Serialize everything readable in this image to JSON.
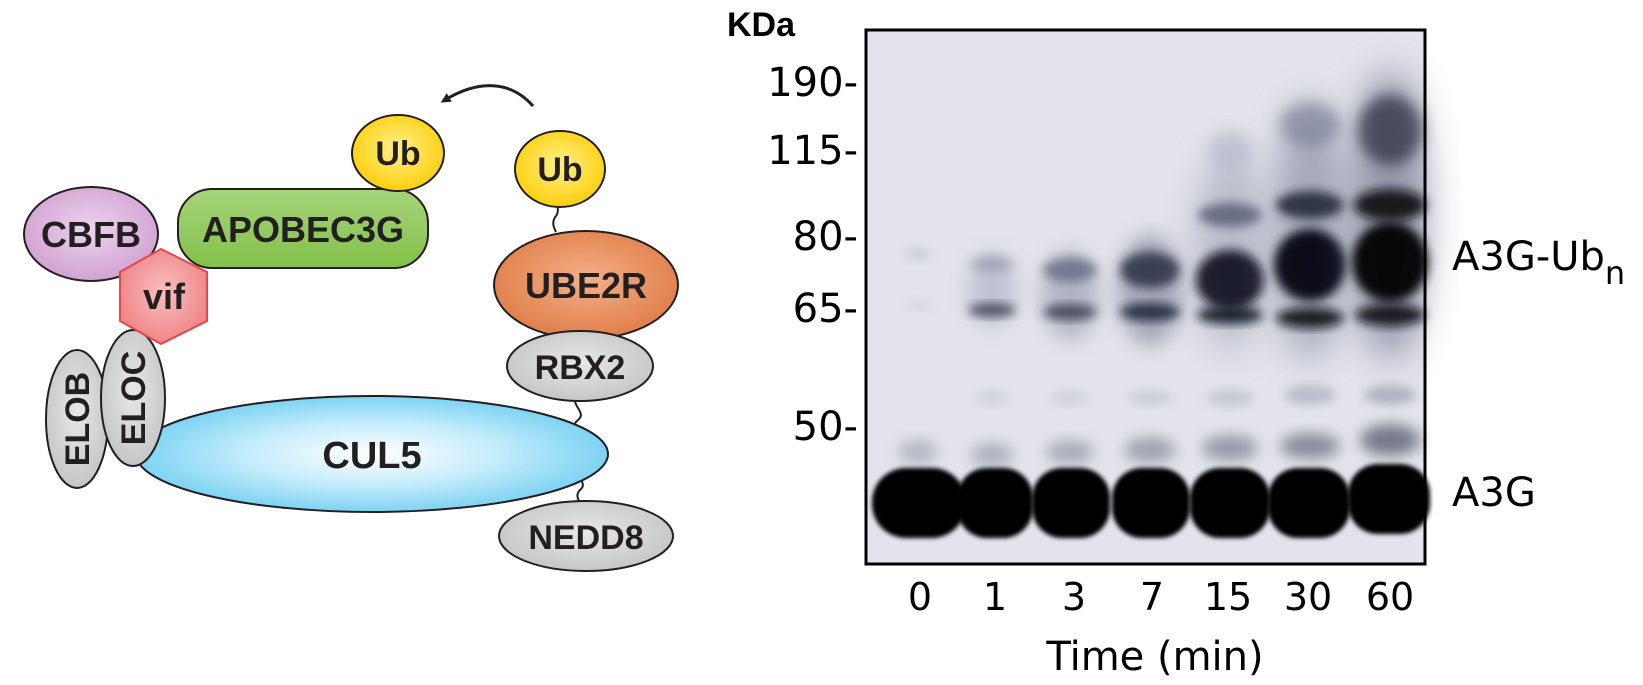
{
  "diagram": {
    "proteins": {
      "cbfb": "CBFB",
      "apobec3g": "APOBEC3G",
      "ub_left": "Ub",
      "ub_right": "Ub",
      "vif": "vif",
      "ube2r": "UBE2R",
      "rbx2": "RBX2",
      "elob": "ELOB",
      "eloc": "ELOC",
      "cul5": "CUL5",
      "nedd8": "NEDD8"
    },
    "colors": {
      "cbfb": "#d6a6d6",
      "apobec3g": "#8dc751",
      "ub": "#ffd500",
      "vif": "#f08a8c",
      "ube2r": "#e07b44",
      "grey": "#c6c7c8",
      "cul5": "#5fc8ef"
    }
  },
  "gel": {
    "unit_label": "KDa",
    "markers": [
      "190-",
      "115-",
      "80-",
      "65-",
      "50-"
    ],
    "lanes": [
      "0",
      "1",
      "3",
      "7",
      "15",
      "30",
      "60"
    ],
    "xlabel": "Time (min)",
    "band_labels": {
      "ub_base": "A3G-Ub",
      "ub_sub": "n",
      "a3g": "A3G"
    }
  }
}
